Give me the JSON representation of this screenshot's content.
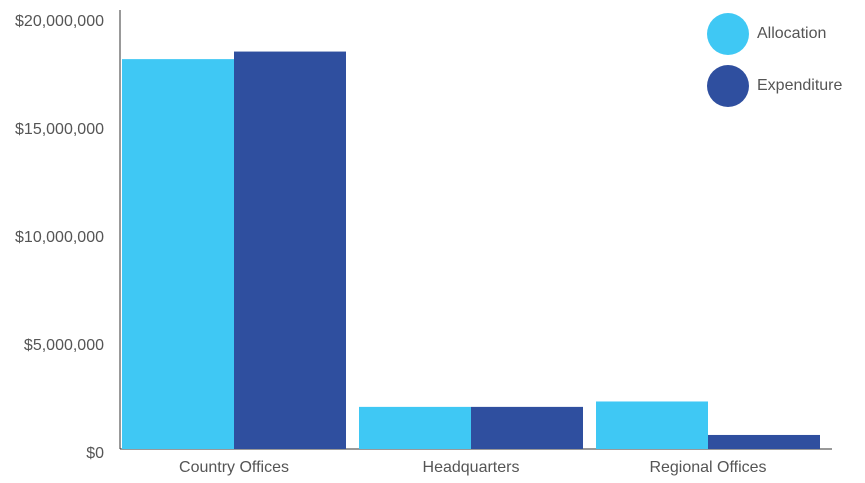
{
  "chart_data": {
    "type": "bar",
    "categories": [
      "Country Offices",
      "Headquarters",
      "Regional Offices"
    ],
    "series": [
      {
        "name": "Allocation",
        "color": "#3fc8f4",
        "values": [
          18050000,
          1950000,
          2200000
        ]
      },
      {
        "name": "Expenditure",
        "color": "#2f4f9f",
        "values": [
          18400000,
          1950000,
          650000
        ]
      }
    ],
    "ylim": [
      0,
      20000000
    ],
    "yticks": [
      {
        "value": 0,
        "label": "$0"
      },
      {
        "value": 5000000,
        "label": "$5,000,000"
      },
      {
        "value": 10000000,
        "label": "$10,000,000"
      },
      {
        "value": 15000000,
        "label": "$15,000,000"
      },
      {
        "value": 20000000,
        "label": "$20,000,000"
      }
    ],
    "grid": false,
    "legend": "top-right"
  }
}
